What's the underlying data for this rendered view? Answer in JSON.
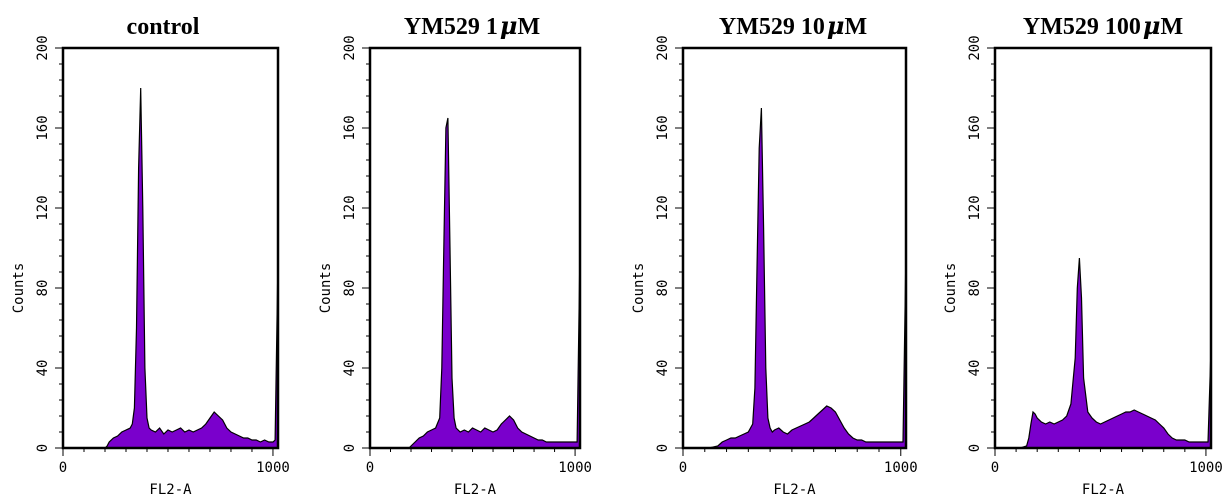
{
  "colors": {
    "fill": "#7a00cc",
    "stroke": "#000000",
    "background": "#ffffff"
  },
  "chart_data": [
    {
      "type": "area",
      "title": "control",
      "xlabel": "FL2-A",
      "ylabel": "Counts",
      "xlim": [
        0,
        1024
      ],
      "ylim": [
        0,
        200
      ],
      "xticks": [
        0,
        1000
      ],
      "yticks": [
        0,
        40,
        80,
        120,
        160,
        200
      ],
      "xtick_labels": [
        "0",
        "1000"
      ],
      "ytick_labels": [
        "0",
        "40",
        "80",
        "120",
        "160",
        "200"
      ],
      "x": [
        0,
        40,
        80,
        120,
        160,
        190,
        200,
        210,
        220,
        240,
        260,
        280,
        300,
        320,
        330,
        340,
        350,
        360,
        370,
        380,
        390,
        400,
        410,
        420,
        440,
        460,
        480,
        500,
        520,
        540,
        560,
        580,
        600,
        620,
        640,
        660,
        680,
        700,
        720,
        740,
        760,
        780,
        800,
        820,
        840,
        860,
        880,
        900,
        920,
        940,
        960,
        980,
        1000,
        1010,
        1024
      ],
      "y": [
        0,
        0,
        0,
        0,
        0,
        0,
        0,
        1,
        3,
        5,
        6,
        8,
        9,
        10,
        12,
        20,
        60,
        140,
        180,
        120,
        40,
        15,
        10,
        9,
        8,
        10,
        7,
        9,
        8,
        9,
        10,
        8,
        9,
        8,
        9,
        10,
        12,
        15,
        18,
        16,
        14,
        10,
        8,
        7,
        6,
        5,
        5,
        4,
        4,
        3,
        4,
        3,
        3,
        4,
        95
      ]
    },
    {
      "type": "area",
      "title": "YM529 1μM",
      "xlabel": "FL2-A",
      "ylabel": "Counts",
      "xlim": [
        0,
        1024
      ],
      "ylim": [
        0,
        200
      ],
      "xticks": [
        0,
        1000
      ],
      "yticks": [
        0,
        40,
        80,
        120,
        160,
        200
      ],
      "xtick_labels": [
        "0",
        "1000"
      ],
      "ytick_labels": [
        "0",
        "40",
        "80",
        "120",
        "160",
        "200"
      ],
      "x": [
        0,
        40,
        80,
        120,
        160,
        190,
        200,
        220,
        240,
        260,
        280,
        300,
        320,
        340,
        350,
        360,
        370,
        380,
        390,
        400,
        410,
        420,
        440,
        460,
        480,
        500,
        520,
        540,
        560,
        580,
        600,
        620,
        640,
        660,
        680,
        700,
        720,
        740,
        760,
        780,
        800,
        820,
        840,
        860,
        880,
        900,
        920,
        940,
        960,
        980,
        1000,
        1010,
        1024
      ],
      "y": [
        0,
        0,
        0,
        0,
        0,
        0,
        1,
        3,
        5,
        6,
        8,
        9,
        10,
        15,
        40,
        100,
        160,
        165,
        100,
        35,
        15,
        10,
        8,
        9,
        8,
        10,
        9,
        8,
        10,
        9,
        8,
        9,
        12,
        14,
        16,
        14,
        10,
        8,
        7,
        6,
        5,
        4,
        4,
        3,
        3,
        3,
        3,
        3,
        3,
        3,
        3,
        3,
        100
      ]
    },
    {
      "type": "area",
      "title": "YM529 10μM",
      "xlabel": "FL2-A",
      "ylabel": "Counts",
      "xlim": [
        0,
        1024
      ],
      "ylim": [
        0,
        200
      ],
      "xticks": [
        0,
        1000
      ],
      "yticks": [
        0,
        40,
        80,
        120,
        160,
        200
      ],
      "xtick_labels": [
        "0",
        "1000"
      ],
      "ytick_labels": [
        "0",
        "40",
        "80",
        "120",
        "160",
        "200"
      ],
      "x": [
        0,
        40,
        80,
        120,
        160,
        170,
        180,
        200,
        220,
        240,
        260,
        280,
        300,
        320,
        330,
        340,
        350,
        360,
        370,
        380,
        390,
        400,
        410,
        420,
        440,
        460,
        480,
        500,
        520,
        540,
        560,
        580,
        600,
        620,
        640,
        660,
        680,
        700,
        720,
        740,
        760,
        780,
        800,
        820,
        840,
        860,
        880,
        900,
        920,
        940,
        960,
        980,
        1000,
        1010,
        1024
      ],
      "y": [
        0,
        0,
        0,
        0,
        1,
        2,
        3,
        4,
        5,
        5,
        6,
        7,
        8,
        12,
        30,
        90,
        150,
        170,
        110,
        40,
        15,
        10,
        8,
        9,
        10,
        8,
        7,
        9,
        10,
        11,
        12,
        13,
        15,
        17,
        19,
        21,
        20,
        18,
        14,
        10,
        7,
        5,
        4,
        4,
        3,
        3,
        3,
        3,
        3,
        3,
        3,
        3,
        3,
        3,
        100
      ]
    },
    {
      "type": "area",
      "title": "YM529 100μM",
      "xlabel": "FL2-A",
      "ylabel": "Counts",
      "xlim": [
        0,
        1024
      ],
      "ylim": [
        0,
        200
      ],
      "xticks": [
        0,
        1000
      ],
      "yticks": [
        0,
        40,
        80,
        120,
        160,
        200
      ],
      "xtick_labels": [
        "0",
        "1000"
      ],
      "ytick_labels": [
        "0",
        "40",
        "80",
        "120",
        "160",
        "200"
      ],
      "x": [
        0,
        40,
        80,
        120,
        150,
        160,
        170,
        180,
        190,
        200,
        220,
        240,
        260,
        280,
        300,
        320,
        340,
        360,
        380,
        390,
        400,
        410,
        420,
        440,
        460,
        480,
        500,
        520,
        540,
        560,
        580,
        600,
        620,
        640,
        660,
        680,
        700,
        720,
        740,
        760,
        780,
        800,
        820,
        840,
        860,
        880,
        900,
        920,
        940,
        960,
        980,
        1000,
        1010,
        1024
      ],
      "y": [
        0,
        0,
        0,
        0,
        1,
        5,
        12,
        18,
        17,
        15,
        13,
        12,
        13,
        12,
        13,
        14,
        16,
        22,
        45,
        80,
        95,
        75,
        35,
        18,
        15,
        13,
        12,
        13,
        14,
        15,
        16,
        17,
        18,
        18,
        19,
        18,
        17,
        16,
        15,
        14,
        12,
        10,
        7,
        5,
        4,
        4,
        4,
        3,
        3,
        3,
        3,
        3,
        3,
        50
      ]
    }
  ]
}
